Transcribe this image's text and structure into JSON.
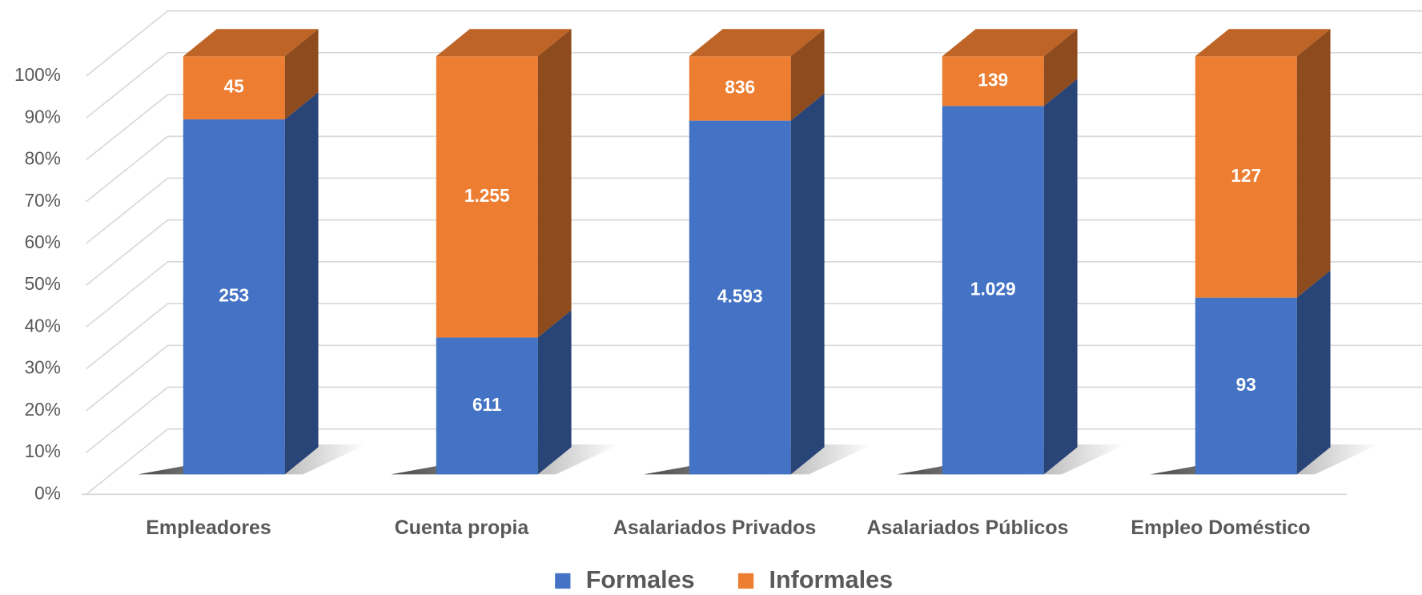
{
  "chart_data": {
    "type": "bar",
    "stacked": "percent",
    "categories": [
      "Empleadores",
      "Cuenta propia",
      "Asalariados Privados",
      "Asalariados Públicos",
      "Empleo Doméstico"
    ],
    "series": [
      {
        "name": "Formales",
        "color": "#4472c4",
        "values": [
          253,
          611,
          4593,
          1029,
          93
        ],
        "value_labels": [
          "253",
          "611",
          "4.593",
          "1.029",
          "93"
        ]
      },
      {
        "name": "Informales",
        "color": "#ed7d31",
        "values": [
          45,
          1255,
          836,
          139,
          127
        ],
        "value_labels": [
          "45",
          "1.255",
          "836",
          "139",
          "127"
        ]
      }
    ],
    "ylim": [
      0,
      100
    ],
    "yticks": [
      {
        "value": 0,
        "label": "0%"
      },
      {
        "value": 10,
        "label": "10%"
      },
      {
        "value": 20,
        "label": "20%"
      },
      {
        "value": 30,
        "label": "30%"
      },
      {
        "value": 40,
        "label": "40%"
      },
      {
        "value": 50,
        "label": "50%"
      },
      {
        "value": 60,
        "label": "60%"
      },
      {
        "value": 70,
        "label": "70%"
      },
      {
        "value": 80,
        "label": "80%"
      },
      {
        "value": 90,
        "label": "90%"
      },
      {
        "value": 100,
        "label": "100%"
      }
    ],
    "grid": true,
    "legend": "bottom"
  }
}
